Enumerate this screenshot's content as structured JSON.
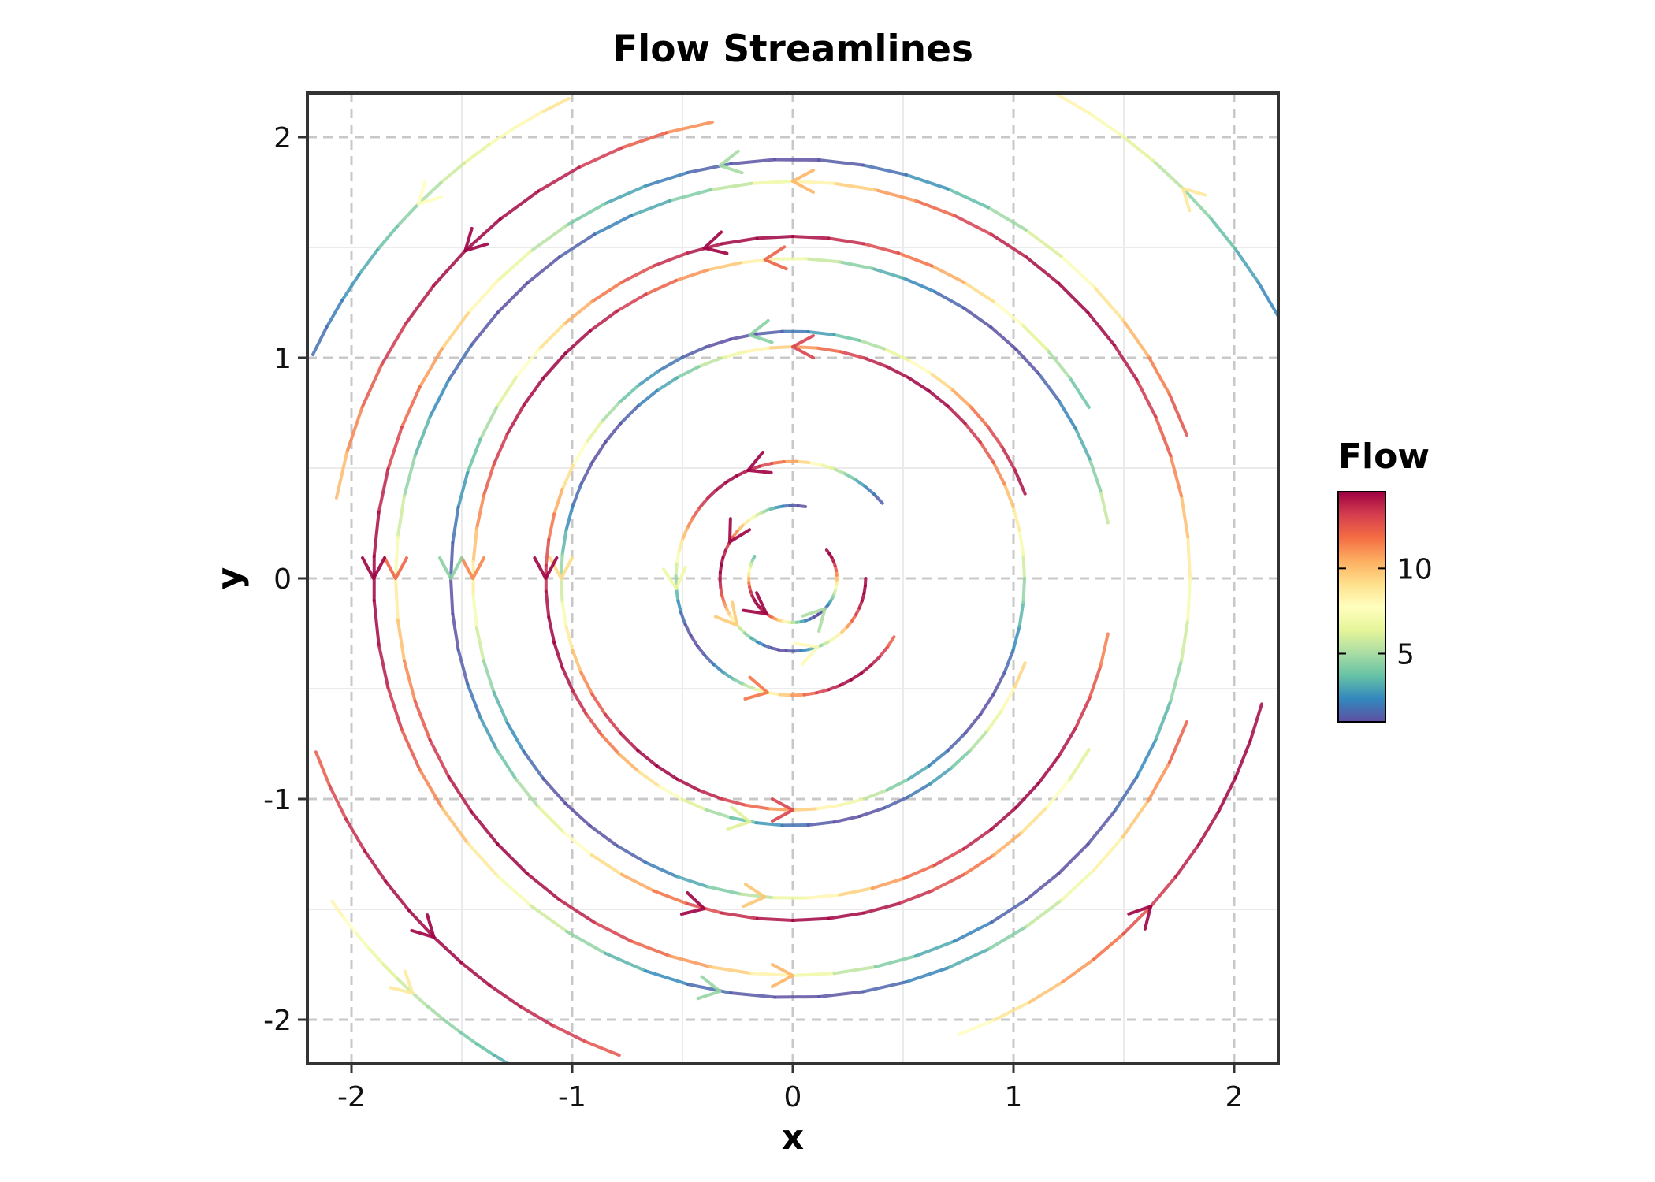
{
  "chart_data": {
    "type": "streamplot",
    "title": "Flow Streamlines",
    "xlabel": "x",
    "ylabel": "y",
    "xlim": [
      -2.2,
      2.2
    ],
    "ylim": [
      -2.2,
      2.2
    ],
    "xticks": [
      -2,
      -1,
      0,
      1,
      2
    ],
    "yticks": [
      -2,
      -1,
      0,
      1,
      2
    ],
    "xtick_labels": [
      "-2",
      "-1",
      "0",
      "1",
      "2"
    ],
    "ytick_labels": [
      "-2",
      "-1",
      "0",
      "1",
      "2"
    ],
    "grid": true,
    "colorbar": {
      "title": "Flow",
      "range": [
        1,
        14.5
      ],
      "ticks": [
        5,
        10
      ],
      "tick_labels": [
        "5",
        "10"
      ],
      "colormap": "Spectral_r",
      "colors": [
        "#5e4fa2",
        "#3288bd",
        "#66c2a5",
        "#abdda4",
        "#e6f598",
        "#ffffbf",
        "#fee08b",
        "#fdae61",
        "#f46d43",
        "#d53e4f",
        "#9e0142"
      ]
    },
    "field": {
      "description": "rotational vortex flow, counter-clockwise",
      "streamlines": [
        {
          "radius": 0.2,
          "from_angle_deg": 150,
          "to_angle_deg": 400
        },
        {
          "radius": 0.33,
          "from_angle_deg": 80,
          "to_angle_deg": 360
        },
        {
          "radius": 0.53,
          "from_angle_deg": 40,
          "to_angle_deg": 330
        },
        {
          "radius": 1.05,
          "from_angle_deg": 0,
          "to_angle_deg": 360
        },
        {
          "radius": 1.12,
          "from_angle_deg": 20,
          "to_angle_deg": 340
        },
        {
          "radius": 1.45,
          "from_angle_deg": 10,
          "to_angle_deg": 350
        },
        {
          "radius": 1.55,
          "from_angle_deg": 30,
          "to_angle_deg": 330
        },
        {
          "radius": 1.8,
          "from_angle_deg": 0,
          "to_angle_deg": 360
        },
        {
          "radius": 1.9,
          "from_angle_deg": 20,
          "to_angle_deg": 340
        },
        {
          "radius": 2.1,
          "from_angle_deg": 100,
          "to_angle_deg": 170
        },
        {
          "radius": 2.4,
          "from_angle_deg": 115,
          "to_angle_deg": 155
        },
        {
          "radius": 2.3,
          "from_angle_deg": 200,
          "to_angle_deg": 250
        },
        {
          "radius": 2.55,
          "from_angle_deg": 215,
          "to_angle_deg": 240
        },
        {
          "radius": 2.2,
          "from_angle_deg": 290,
          "to_angle_deg": 345
        },
        {
          "radius": 2.5,
          "from_angle_deg": 20,
          "to_angle_deg": 70
        }
      ]
    }
  }
}
